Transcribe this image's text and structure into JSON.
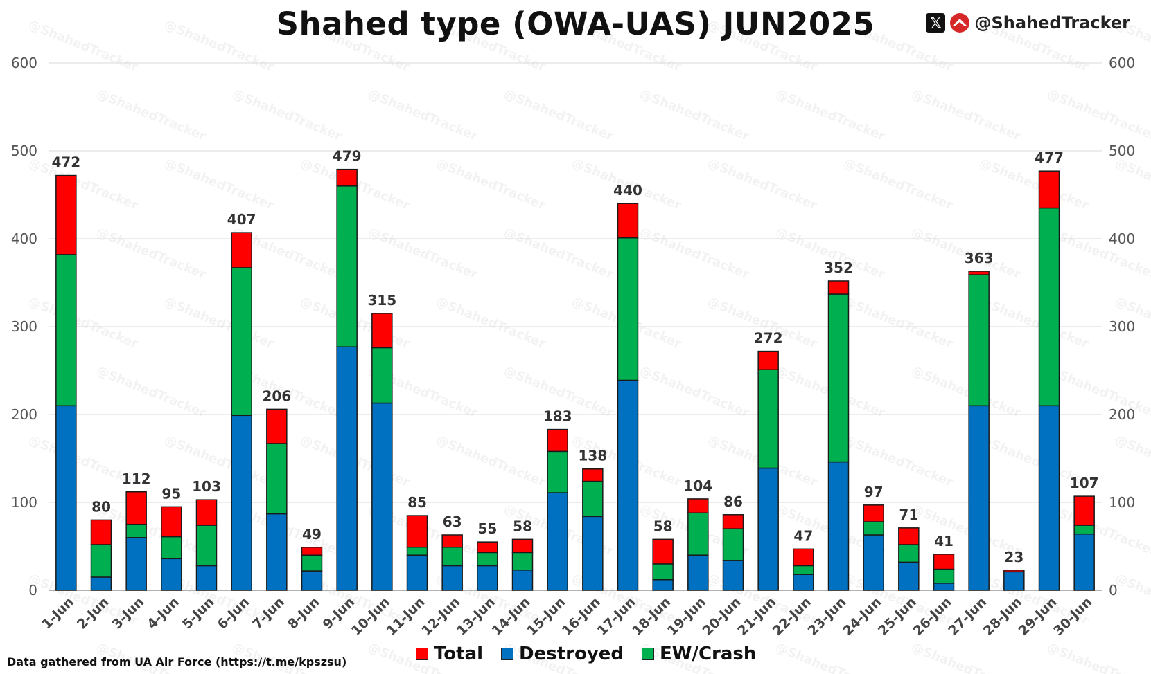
{
  "header": {
    "title": "Shahed type (OWA-UAS) JUN2025",
    "handle": "@ShahedTracker",
    "x_icon_glyph": "𝕏",
    "x_icon": "x-logo-icon",
    "brand_icon": "shahed-tracker-logo-icon",
    "watermark": "@ShahedTracker"
  },
  "footer": {
    "source": "Data gathered from UA Air Force (https://t.me/kpszsu)"
  },
  "colors": {
    "total": "#ff0000",
    "destroyed": "#0070c0",
    "ew_crash": "#00b050",
    "grid": "#d9d9d9",
    "bar_outline": "#1a1a1a"
  },
  "chart_data": {
    "type": "bar",
    "stacked": true,
    "title": "Shahed type (OWA-UAS) JUN2025",
    "xlabel": "",
    "ylabel": "",
    "ylim": [
      0,
      600
    ],
    "yticks": [
      0,
      100,
      200,
      300,
      400,
      500,
      600
    ],
    "grid": true,
    "secondary_axis": true,
    "legend_position": "bottom",
    "categories": [
      "1-Jun",
      "2-Jun",
      "3-Jun",
      "4-Jun",
      "5-Jun",
      "6-Jun",
      "7-Jun",
      "8-Jun",
      "9-Jun",
      "10-Jun",
      "11-Jun",
      "12-Jun",
      "13-Jun",
      "14-Jun",
      "15-Jun",
      "16-Jun",
      "17-Jun",
      "18-Jun",
      "19-Jun",
      "20-Jun",
      "21-Jun",
      "22-Jun",
      "23-Jun",
      "24-Jun",
      "25-Jun",
      "26-Jun",
      "27-Jun",
      "28-Jun",
      "29-Jun",
      "30-Jun"
    ],
    "series": [
      {
        "name": "Destroyed",
        "color": "#0070c0",
        "values": [
          210,
          15,
          60,
          36,
          28,
          199,
          87,
          22,
          277,
          213,
          40,
          28,
          28,
          23,
          111,
          84,
          239,
          12,
          40,
          34,
          139,
          18,
          146,
          63,
          32,
          8,
          210,
          21,
          210,
          64
        ]
      },
      {
        "name": "EW/Crash",
        "color": "#00b050",
        "values": [
          172,
          37,
          15,
          25,
          46,
          168,
          80,
          18,
          183,
          63,
          9,
          21,
          15,
          20,
          47,
          40,
          162,
          18,
          48,
          36,
          112,
          10,
          191,
          15,
          20,
          16,
          149,
          0,
          225,
          10
        ]
      },
      {
        "name": "Total",
        "color": "#ff0000",
        "values": [
          472,
          80,
          112,
          95,
          103,
          407,
          206,
          49,
          479,
          315,
          85,
          63,
          55,
          58,
          183,
          138,
          440,
          58,
          104,
          86,
          272,
          47,
          352,
          97,
          71,
          41,
          363,
          23,
          477,
          107
        ]
      }
    ],
    "legend": [
      "Total",
      "Destroyed",
      "EW/Crash"
    ]
  }
}
